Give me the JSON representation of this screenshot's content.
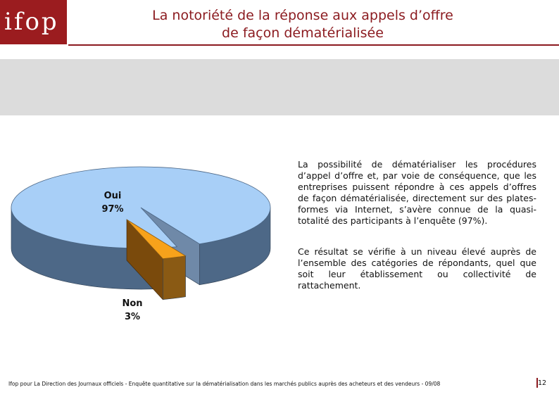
{
  "header": {
    "logo_text": "ifop",
    "title_line1": "La notoriété de la réponse aux appels d’offre",
    "title_line2": "de façon dématérialisée"
  },
  "chart_data": {
    "type": "pie",
    "categories": [
      "Oui",
      "Non"
    ],
    "values": [
      97,
      3
    ],
    "labels": [
      "Oui\n97%",
      "Non\n3%"
    ],
    "colors": [
      "#a8cff7",
      "#f7a21b"
    ],
    "side_colors": [
      "#4d6887",
      "#7a4a0c"
    ],
    "style": "3d-exploded"
  },
  "body_text": {
    "paragraph1": "La possibilité de dématérialiser les procédures d’appel d’offre et, par voie de conséquence, que les entreprises puissent répondre à ces appels d’offres de façon dématérialisée, directement sur des plates-formes via Internet, s’avère connue de la quasi-totalité des participants à l’enquête (97%).",
    "paragraph2": "Ce résultat se vérifie à un niveau élevé auprès de l’ensemble des catégories de répondants, quel que soit leur établissement ou collectivité de rattachement."
  },
  "footer": {
    "text": "Ifop pour La Direction des Journaux officiels - Enquête quantitative sur la dématérialisation dans les marchés publics auprès des acheteurs et des vendeurs - 09/08",
    "page_number": "12"
  }
}
